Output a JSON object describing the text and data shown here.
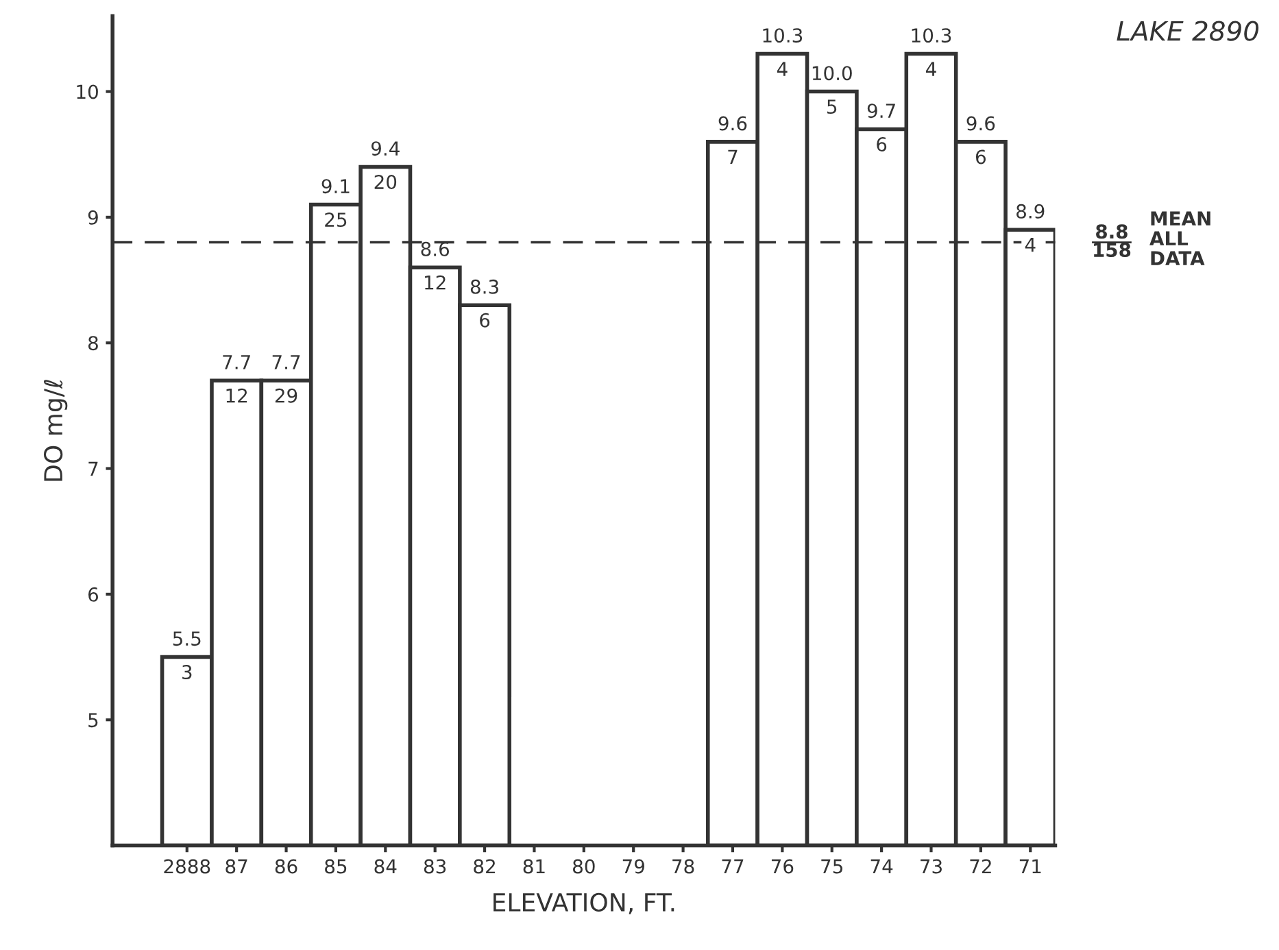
{
  "chart_data": {
    "type": "bar",
    "title": "LAKE 2890",
    "xlabel": "ELEVATION, FT.",
    "ylabel": "DO mg/ℓ",
    "categories": [
      "2888",
      "87",
      "86",
      "85",
      "84",
      "83",
      "82",
      "81",
      "80",
      "79",
      "78",
      "77",
      "76",
      "75",
      "74",
      "73",
      "72",
      "71"
    ],
    "values": [
      5.5,
      7.7,
      7.7,
      9.1,
      9.4,
      8.6,
      8.3,
      null,
      null,
      null,
      null,
      9.6,
      10.3,
      10.0,
      9.7,
      10.3,
      9.6,
      8.9
    ],
    "value_labels": [
      "5.5",
      "7.7",
      "7.7",
      "9.1",
      "9.4",
      "8.6",
      "8.3",
      null,
      null,
      null,
      null,
      "9.6",
      "10.3",
      "10.0",
      "9.7",
      "10.3",
      "9.6",
      "8.9"
    ],
    "color": "#ffffff",
    "ylim": [
      4,
      10.6
    ],
    "yticks": [
      5,
      6,
      7,
      8,
      9,
      10
    ],
    "grid": false,
    "ref_lines": [
      {
        "axis": "y",
        "value": 8.8,
        "label": "8.8",
        "line_style": "dashed",
        "color": "#333333"
      }
    ],
    "annotations": [
      "158",
      "MEAN\nALL\nDATA",
      {
        "text": "3",
        "x": "2888",
        "y": 5.5
      },
      {
        "text": "12",
        "x": "87",
        "y": 7.7
      },
      {
        "text": "29",
        "x": "86",
        "y": 7.7
      },
      {
        "text": "25",
        "x": "85",
        "y": 9.1
      },
      {
        "text": "20",
        "x": "84",
        "y": 9.4
      },
      {
        "text": "12",
        "x": "83",
        "y": 8.6
      },
      {
        "text": "6",
        "x": "82",
        "y": 8.3
      },
      {
        "text": "7",
        "x": "77",
        "y": 9.6
      },
      {
        "text": "4",
        "x": "76",
        "y": 10.3
      },
      {
        "text": "5",
        "x": "75",
        "y": 10.0
      },
      {
        "text": "6",
        "x": "74",
        "y": 9.7
      },
      {
        "text": "4",
        "x": "73",
        "y": 10.3
      },
      {
        "text": "6",
        "x": "72",
        "y": 9.6
      },
      {
        "text": "4",
        "x": "71",
        "y": 8.9
      }
    ]
  }
}
